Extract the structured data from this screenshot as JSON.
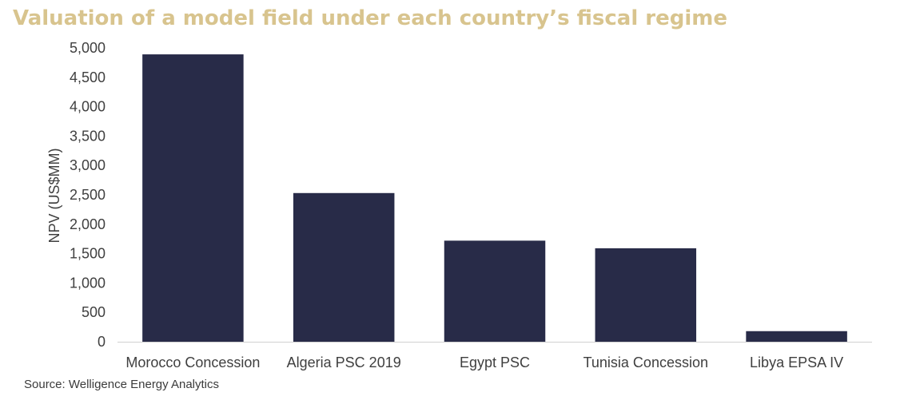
{
  "chart_data": {
    "type": "bar",
    "title": "Valuation of a model field under each country’s fiscal regime",
    "xlabel": "",
    "ylabel": "NPV (US$MM)",
    "ylim": [
      0,
      5000
    ],
    "yticks": [
      0,
      500,
      1000,
      1500,
      2000,
      2500,
      3000,
      3500,
      4000,
      4500,
      5000
    ],
    "ytick_labels": [
      "0",
      "500",
      "1,000",
      "1,500",
      "2,000",
      "2,500",
      "3,000",
      "3,500",
      "4,000",
      "4,500",
      "5,000"
    ],
    "grid": false,
    "categories": [
      "Morocco Concession",
      "Algeria PSC 2019",
      "Egypt PSC",
      "Tunisia Concession",
      "Libya EPSA IV"
    ],
    "values": [
      4890,
      2530,
      1720,
      1590,
      180
    ],
    "bar_color": "#282b48",
    "title_color": "#d8c48e"
  },
  "source": "Source: Welligence Energy Analytics"
}
